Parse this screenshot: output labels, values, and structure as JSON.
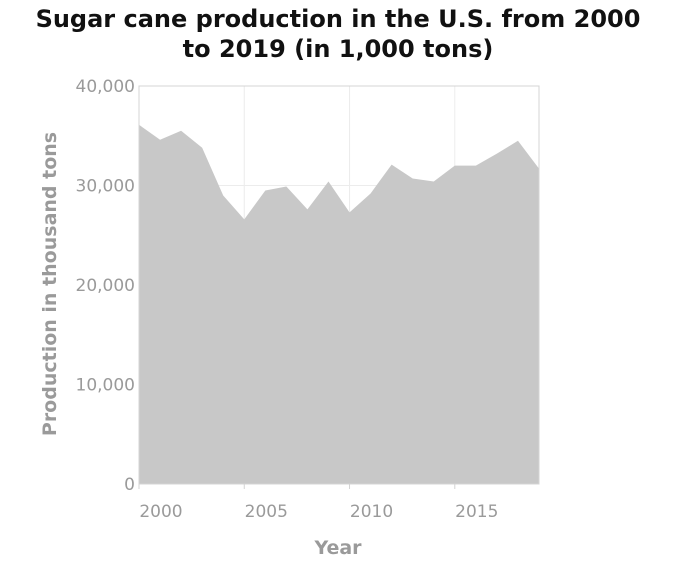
{
  "chart_data": {
    "type": "area",
    "title_lines": [
      "Sugar cane production in the U.S. from 2000",
      "to 2019 (in 1,000 tons)"
    ],
    "xlabel": "Year",
    "ylabel": "Production in thousand tons",
    "x": [
      2000,
      2001,
      2002,
      2003,
      2004,
      2005,
      2006,
      2007,
      2008,
      2009,
      2010,
      2011,
      2012,
      2013,
      2014,
      2015,
      2016,
      2017,
      2018,
      2019
    ],
    "values": [
      36100,
      34600,
      35500,
      33800,
      29000,
      26600,
      29500,
      29900,
      27600,
      30400,
      27300,
      29200,
      32100,
      30700,
      30400,
      32000,
      32000,
      33200,
      34500,
      31700
    ],
    "xlim": [
      2000,
      2019
    ],
    "ylim": [
      0,
      40000
    ],
    "x_ticks": [
      2000,
      2005,
      2010,
      2015
    ],
    "x_tick_labels": [
      "2000",
      "2005",
      "2010",
      "2015"
    ],
    "y_ticks": [
      0,
      10000,
      20000,
      30000,
      40000
    ],
    "y_tick_labels": [
      "0",
      "10,000",
      "20,000",
      "30,000",
      "40,000"
    ],
    "grid": true,
    "colors": {
      "fill": "#c8c8c8",
      "grid": "#ececec",
      "frame": "#d4d4d4",
      "tick_text": "#9a9a9a"
    }
  }
}
